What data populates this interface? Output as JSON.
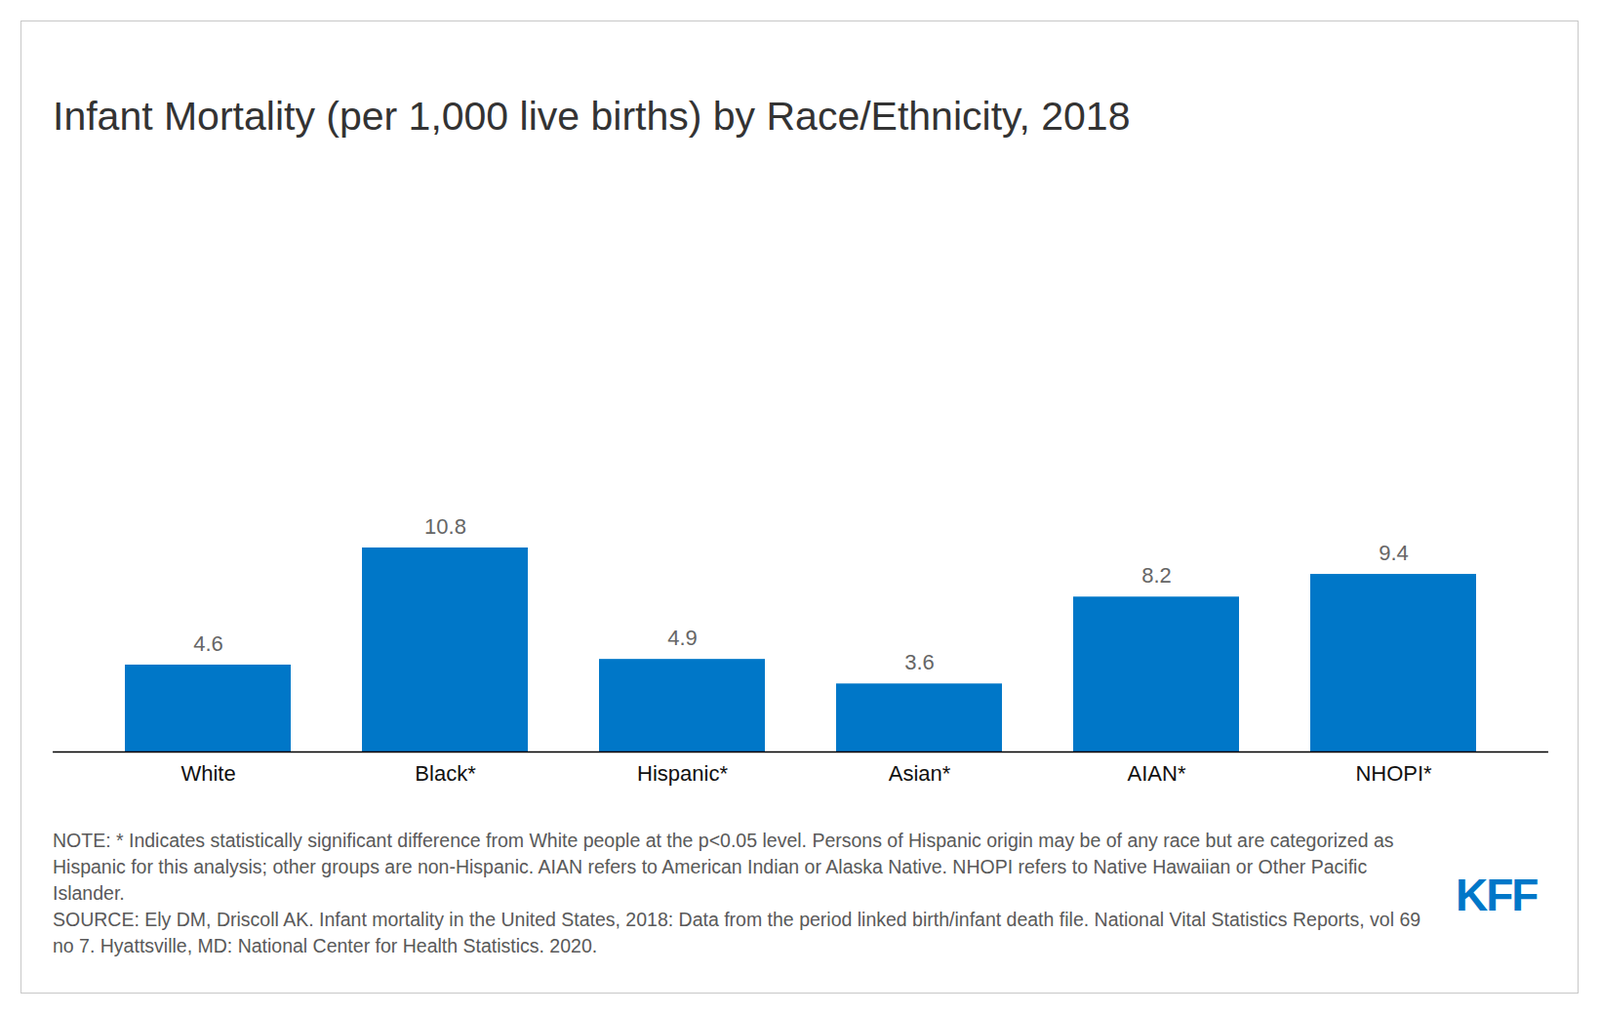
{
  "chart_data": {
    "type": "bar",
    "title": "Infant Mortality (per 1,000 live births) by Race/Ethnicity, 2018",
    "categories": [
      "White",
      "Black*",
      "Hispanic*",
      "Asian*",
      "AIAN*",
      "NHOPI*"
    ],
    "values": [
      4.6,
      10.8,
      4.9,
      3.6,
      8.2,
      9.4
    ],
    "color": "#0077c8",
    "ylim": [
      0,
      31
    ],
    "data_labels": true,
    "tick_labels": "x",
    "grid": false,
    "note": "NOTE: * Indicates statistically significant difference from White people at the p<0.05 level. Persons of Hispanic origin may be of any race but are categorized as Hispanic for this analysis; other groups are non-Hispanic. AIAN refers to American Indian or Alaska Native. NHOPI refers to Native Hawaiian or Other Pacific Islander.",
    "source": "SOURCE: Ely DM, Driscoll AK. Infant mortality in the United States, 2018: Data from the period linked birth/infant death file. National Vital Statistics Reports, vol 69 no 7. Hyattsville, MD: National Center for Health Statistics. 2020.",
    "logo": "KFF"
  }
}
